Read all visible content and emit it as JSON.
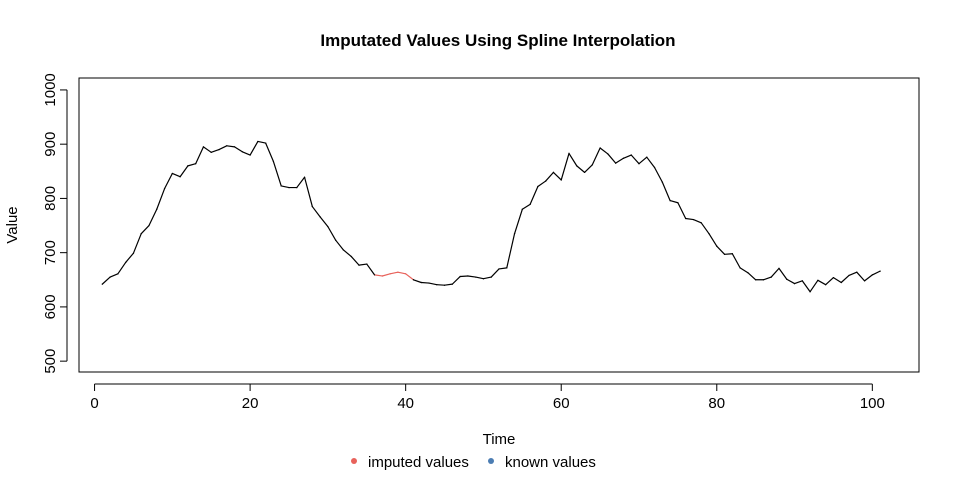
{
  "chart_data": {
    "type": "line",
    "title": "Imputated Values Using Spline Interpolation",
    "xlabel": "Time",
    "ylabel": "Value",
    "xlim": [
      -2,
      106
    ],
    "ylim": [
      480,
      1022
    ],
    "xticks": [
      0,
      20,
      40,
      60,
      80,
      100
    ],
    "yticks": [
      500,
      600,
      700,
      800,
      900,
      1000
    ],
    "grid": false,
    "legend_position": "bottom",
    "legend": [
      {
        "label": "imputed values",
        "color": "#E8625B"
      },
      {
        "label": "known values",
        "color": "#4C7DB3"
      }
    ],
    "line_color": "#000000",
    "imputed_color": "#E8625B",
    "x": [
      1,
      2,
      3,
      4,
      5,
      6,
      7,
      8,
      9,
      10,
      11,
      12,
      13,
      14,
      15,
      16,
      17,
      18,
      19,
      20,
      21,
      22,
      23,
      24,
      25,
      26,
      27,
      28,
      29,
      30,
      31,
      32,
      33,
      34,
      35,
      36,
      37,
      38,
      39,
      40,
      41,
      42,
      43,
      44,
      45,
      46,
      47,
      48,
      49,
      50,
      51,
      52,
      53,
      54,
      55,
      56,
      57,
      58,
      59,
      60,
      61,
      62,
      63,
      64,
      65,
      66,
      67,
      68,
      69,
      70,
      71,
      72,
      73,
      74,
      75,
      76,
      77,
      78,
      79,
      80,
      81,
      82,
      83,
      84,
      85,
      86,
      87,
      88,
      89,
      90,
      91,
      92,
      93,
      94,
      95,
      96,
      97,
      98,
      99,
      100,
      101
    ],
    "series": [
      {
        "name": "Value",
        "values": [
          642,
          655,
          661,
          682,
          699,
          735,
          750,
          780,
          818,
          846,
          840,
          860,
          864,
          895,
          885,
          890,
          897,
          895,
          886,
          880,
          905,
          902,
          868,
          823,
          820,
          820,
          839,
          785,
          766,
          748,
          723,
          705,
          693,
          677,
          679,
          659,
          657,
          661,
          664,
          661,
          650,
          645,
          644,
          641,
          640,
          642,
          656,
          657,
          655,
          652,
          655,
          670,
          672,
          735,
          780,
          789,
          822,
          832,
          848,
          834,
          883,
          860,
          848,
          862,
          893,
          882,
          865,
          874,
          880,
          864,
          876,
          857,
          830,
          796,
          792,
          763,
          761,
          755,
          735,
          712,
          697,
          698,
          672,
          663,
          650,
          650,
          655,
          671,
          651,
          643,
          648,
          628,
          649,
          641,
          654,
          645,
          658,
          664,
          648,
          659,
          666
        ]
      }
    ],
    "imputed_x": [
      37,
      38,
      39,
      40
    ]
  }
}
